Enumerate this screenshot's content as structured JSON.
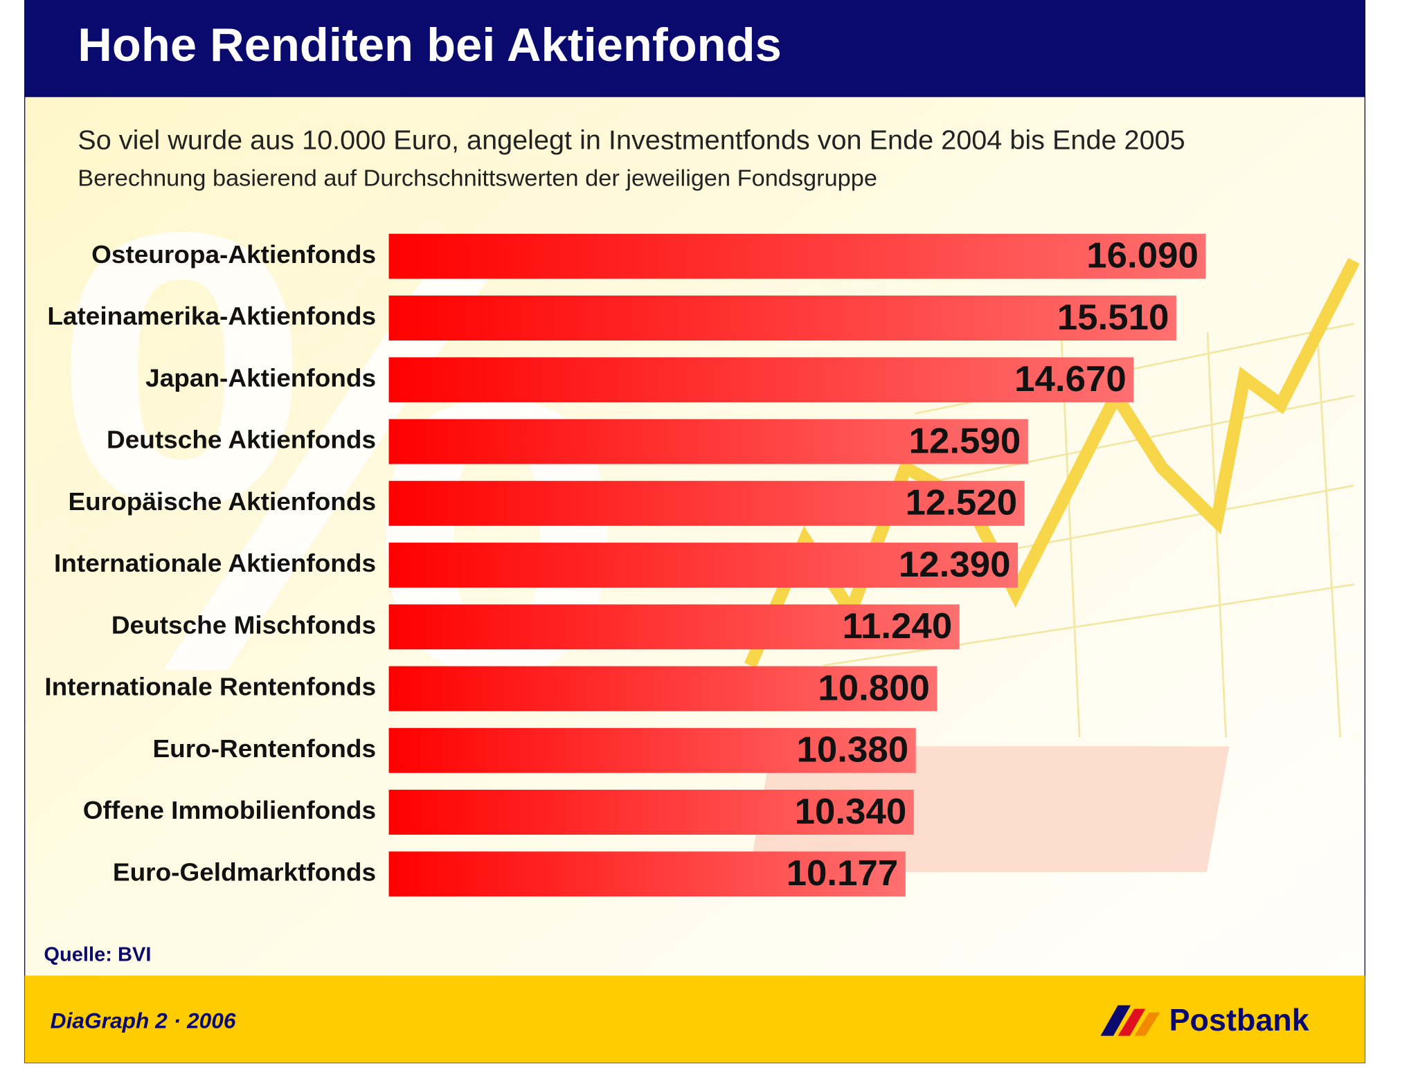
{
  "chart_data": {
    "type": "bar",
    "title": "Hohe Renditen bei Aktienfonds",
    "subtitle": "So viel wurde aus 10.000 Euro, angelegt in Investmentfonds von Ende 2004 bis Ende 2005",
    "note": "Berechnung basierend auf Durchschnittswerten der jeweiligen Fondsgruppe",
    "categories": [
      "Osteuropa-Aktienfonds",
      "Lateinamerika-Aktienfonds",
      "Japan-Aktienfonds",
      "Deutsche Aktienfonds",
      "Europäische Aktienfonds",
      "Internationale Aktienfonds",
      "Deutsche Mischfonds",
      "Internationale Rentenfonds",
      "Euro-Rentenfonds",
      "Offene Immobilienfonds",
      "Euro-Geldmarktfonds"
    ],
    "values": [
      16090,
      15510,
      14670,
      12590,
      12520,
      12390,
      11240,
      10800,
      10380,
      10340,
      10177
    ],
    "value_labels": [
      "16.090",
      "15.510",
      "14.670",
      "12.590",
      "12.520",
      "12.390",
      "11.240",
      "10.800",
      "10.380",
      "10.340",
      "10.177"
    ],
    "color": "#ff0000",
    "source": "Quelle: BVI",
    "footer": "DiaGraph 2 · 2006",
    "brand": "Postbank"
  }
}
